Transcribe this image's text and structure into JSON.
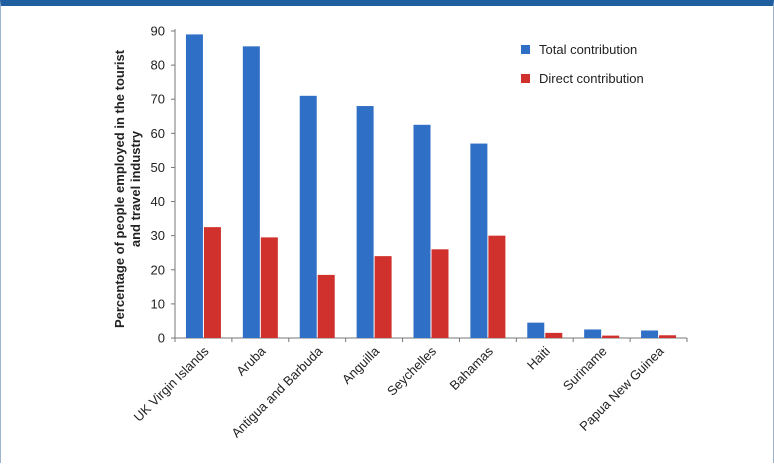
{
  "chart_data": {
    "type": "bar",
    "title": "",
    "xlabel": "",
    "ylabel": "Percentage of people employed in the tourist and travel industry",
    "ylabel_lines": [
      "Percentage of people employed in the tourist",
      "and travel industry"
    ],
    "ylim": [
      0,
      90
    ],
    "yticks": [
      0,
      10,
      20,
      30,
      40,
      50,
      60,
      70,
      80,
      90
    ],
    "grid": false,
    "legend_position": "top-right",
    "categories": [
      "UK Virgin Islands",
      "Aruba",
      "Antigua and Barbuda",
      "Anguilla",
      "Seychelles",
      "Bahamas",
      "Haiti",
      "Suriname",
      "Papua New Guinea"
    ],
    "series": [
      {
        "name": "Total contribution",
        "color": "#2f6fc6",
        "values": [
          89,
          85.5,
          71,
          68,
          62.5,
          57,
          4.5,
          2.5,
          2.2
        ]
      },
      {
        "name": "Direct contribution",
        "color": "#d0312d",
        "values": [
          32.5,
          29.5,
          18.5,
          24,
          26,
          30,
          1.5,
          0.7,
          0.8
        ]
      }
    ]
  }
}
